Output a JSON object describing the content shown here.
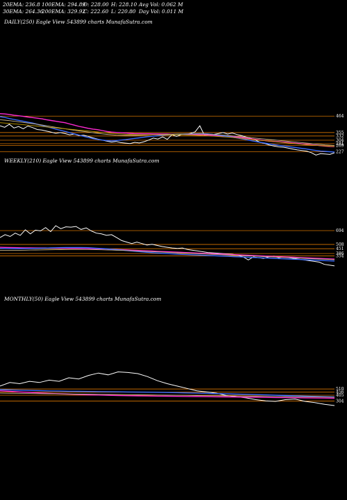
{
  "header": {
    "ema20": "20EMA: 236.8",
    "ema30": "30EMA: 264.36",
    "ema100": "100EMA: 294.89",
    "ema200": "200EMA: 329.92",
    "open": "O: 228.00",
    "close": "C: 222.60",
    "high": "H: 228.10",
    "low": "L: 220.80",
    "avg_vol": "Avg Vol: 0.062  M",
    "day_vol": "Day Vol: 0.011  M"
  },
  "colors": {
    "background": "#000000",
    "price": "#ffffff",
    "ema_pink": "#ff2ad4",
    "ema_blue": "#3a6bff",
    "ema_khaki": "#c8b58a",
    "ema_gold": "#c8a000",
    "level_line": "#ff8a00",
    "label_text": "#ffffff"
  },
  "chart_data": [
    {
      "type": "line",
      "title": "DAILY(250) Eagle  View  543899 charts MunafaSutra.com",
      "ylim": [
        198,
        520
      ],
      "levels": [
        464,
        355,
        332,
        304,
        281,
        269,
        227
      ],
      "level_labels": [
        "464",
        "355",
        "332",
        "304",
        "281",
        "269",
        "227"
      ],
      "series": [
        {
          "role": "price",
          "values": [
            400,
            390,
            410,
            385,
            395,
            380,
            398,
            388,
            375,
            372,
            365,
            358,
            350,
            355,
            348,
            340,
            345,
            335,
            338,
            330,
            320,
            312,
            305,
            298,
            292,
            296,
            288,
            285,
            282,
            290,
            286,
            294,
            305,
            318,
            312,
            326,
            310,
            340,
            330,
            340,
            342,
            350,
            360,
            400,
            336,
            345,
            343,
            348,
            355,
            345,
            352,
            342,
            335,
            325,
            316,
            305,
            290,
            282,
            272,
            265,
            260,
            258,
            252,
            246,
            240,
            236,
            232,
            222,
            206,
            215,
            213,
            210,
            221
          ]
        },
        {
          "role": "ema-pink",
          "values": [
            480,
            478,
            475,
            470,
            466,
            462,
            458,
            454,
            450,
            446,
            440,
            435,
            430,
            425,
            420,
            412,
            404,
            396,
            390,
            383,
            378,
            374,
            368,
            362,
            358,
            356,
            354,
            352,
            350,
            348,
            348,
            347,
            347,
            346,
            346,
            345,
            345,
            344,
            344,
            344,
            343,
            343,
            342,
            341,
            340,
            338,
            336,
            334,
            332,
            330,
            328,
            325,
            322,
            318,
            314,
            310,
            306,
            302,
            298,
            296,
            294,
            292,
            289,
            286,
            283,
            280,
            277,
            274,
            271,
            268,
            265,
            263,
            262
          ]
        },
        {
          "role": "ema-blue",
          "values": [
            460,
            455,
            448,
            442,
            436,
            430,
            424,
            418,
            410,
            402,
            394,
            386,
            378,
            370,
            362,
            354,
            346,
            338,
            330,
            322,
            315,
            310,
            305,
            302,
            300,
            302,
            305,
            308,
            312,
            316,
            320,
            324,
            328,
            331,
            334,
            337,
            339,
            341,
            343,
            344,
            345,
            346,
            347,
            348,
            347,
            345,
            342,
            338,
            334,
            329,
            324,
            319,
            314,
            308,
            302,
            296,
            290,
            285,
            280,
            275,
            270,
            266,
            262,
            258,
            254,
            250,
            246,
            241,
            236,
            232,
            230,
            228,
            226
          ]
        },
        {
          "role": "ema-khaki",
          "values": [
            440,
            437,
            434,
            430,
            426,
            422,
            418,
            414,
            410,
            405,
            400,
            395,
            390,
            385,
            380,
            375,
            370,
            366,
            362,
            358,
            354,
            350,
            346,
            343,
            340,
            338,
            337,
            336,
            336,
            336,
            337,
            338,
            339,
            340,
            341,
            342,
            343,
            344,
            345,
            346,
            346,
            346,
            346,
            346,
            345,
            344,
            342,
            340,
            338,
            336,
            333,
            330,
            327,
            324,
            321,
            318,
            315,
            312,
            309,
            306,
            303,
            300,
            297,
            294,
            291,
            288,
            285,
            282,
            279,
            276,
            273,
            271,
            269
          ]
        },
        {
          "role": "ema-gold",
          "values": [
            420,
            418,
            416,
            413,
            410,
            407,
            404,
            401,
            398,
            395,
            392,
            389,
            386,
            383,
            380,
            377,
            374,
            371,
            368,
            365,
            362,
            359,
            356,
            353,
            350,
            348,
            346,
            344,
            343,
            342,
            341,
            340,
            340,
            340,
            340,
            340,
            340,
            340,
            340,
            340,
            339,
            338,
            337,
            336,
            335,
            333,
            331,
            329,
            327,
            325,
            322,
            319,
            316,
            313,
            310,
            307,
            304,
            301,
            298,
            295,
            292,
            289,
            286,
            283,
            280,
            277,
            274,
            272,
            270,
            268,
            266,
            264,
            263
          ]
        }
      ]
    },
    {
      "type": "line",
      "title": "WEEKLY(210) Eagle  View  543899 charts MunafaSutra.com",
      "ylim": [
        200,
        900
      ],
      "levels": [
        694,
        508,
        451,
        386,
        354
      ],
      "level_labels": [
        "694",
        "508",
        "451",
        "386",
        "354"
      ],
      "series": [
        {
          "role": "price",
          "values": [
            600,
            640,
            615,
            660,
            630,
            705,
            650,
            700,
            690,
            735,
            680,
            760,
            720,
            745,
            740,
            750,
            710,
            730,
            690,
            660,
            650,
            630,
            640,
            600,
            560,
            540,
            520,
            540,
            520,
            500,
            510,
            495,
            480,
            470,
            460,
            455,
            460,
            440,
            430,
            420,
            410,
            400,
            395,
            390,
            385,
            380,
            375,
            360,
            340,
            300,
            340,
            330,
            320,
            340,
            350,
            330,
            340,
            330,
            320,
            310,
            300,
            290,
            280,
            270,
            240,
            230,
            220
          ]
        },
        {
          "role": "ema-pink",
          "values": [
            470,
            468,
            466,
            465,
            463,
            462,
            461,
            460,
            460,
            460,
            459,
            459,
            458,
            458,
            457,
            456,
            455,
            454,
            452,
            450,
            448,
            446,
            443,
            440,
            437,
            434,
            431,
            428,
            425,
            422,
            419,
            416,
            413,
            410,
            407,
            404,
            401,
            398,
            395,
            392,
            389,
            386,
            383,
            380,
            377,
            374,
            371,
            368,
            365,
            362,
            359,
            356,
            353,
            350,
            347,
            344,
            341,
            338,
            335,
            332,
            329,
            326,
            323,
            320,
            317,
            314,
            311
          ]
        },
        {
          "role": "ema-blue",
          "values": [
            455,
            454,
            453,
            452,
            452,
            453,
            454,
            455,
            457,
            459,
            461,
            463,
            465,
            466,
            467,
            467,
            466,
            465,
            462,
            458,
            454,
            449,
            444,
            438,
            432,
            426,
            420,
            414,
            408,
            403,
            398,
            393,
            389,
            385,
            381,
            378,
            375,
            372,
            369,
            366,
            363,
            360,
            357,
            354,
            351,
            348,
            345,
            342,
            339,
            336,
            333,
            330,
            327,
            324,
            321,
            318,
            315,
            312,
            309,
            306,
            303,
            300,
            297,
            294,
            291,
            288,
            285
          ]
        },
        {
          "role": "ema-khaki",
          "values": [
            430,
            430,
            430,
            430,
            430,
            431,
            432,
            433,
            434,
            435,
            436,
            437,
            438,
            439,
            440,
            440,
            440,
            440,
            439,
            438,
            436,
            434,
            432,
            430,
            428,
            426,
            423,
            420,
            417,
            414,
            411,
            408,
            405,
            402,
            399,
            396,
            393,
            390,
            387,
            384,
            381,
            378,
            375,
            372,
            369,
            366,
            363,
            360,
            357,
            354,
            351,
            348,
            345,
            342,
            339,
            336,
            333,
            330,
            327,
            324,
            321,
            318,
            315,
            312,
            309,
            306,
            303
          ]
        }
      ]
    },
    {
      "type": "line",
      "title": "MONTHLY(50) Eagle  View  543899 charts MunafaSutra.com",
      "ylim": [
        100,
        1100
      ],
      "levels": [
        510,
        456,
        405,
        304
      ],
      "level_labels": [
        "510",
        "456",
        "405",
        "304"
      ],
      "series": [
        {
          "role": "price",
          "values": [
            560,
            620,
            600,
            640,
            620,
            660,
            640,
            700,
            680,
            740,
            780,
            750,
            800,
            790,
            770,
            720,
            650,
            600,
            560,
            520,
            480,
            460,
            440,
            400,
            380,
            360,
            330,
            310,
            300,
            330,
            340,
            300,
            280,
            250,
            230
          ]
        },
        {
          "role": "ema-pink",
          "values": [
            480,
            470,
            460,
            452,
            444,
            436,
            430,
            424,
            418,
            412,
            408,
            404,
            400,
            396,
            394,
            392,
            390,
            388,
            386,
            384,
            382,
            380,
            378,
            376,
            374,
            372,
            370,
            368,
            366,
            364,
            362,
            360,
            358,
            356,
            354
          ]
        },
        {
          "role": "ema-blue",
          "values": [
            500,
            495,
            490,
            486,
            482,
            478,
            475,
            472,
            470,
            468,
            466,
            464,
            462,
            460,
            458,
            456,
            454,
            451,
            448,
            444,
            440,
            436,
            432,
            428,
            424,
            420,
            415,
            410,
            405,
            400,
            395,
            390,
            385,
            380,
            375
          ]
        },
        {
          "role": "ema-khaki",
          "values": [
            440,
            438,
            436,
            434,
            432,
            430,
            428,
            426,
            424,
            422,
            420,
            418,
            416,
            414,
            412,
            410,
            408,
            406,
            404,
            402,
            400,
            398,
            396,
            394,
            392,
            390,
            388,
            386,
            384,
            382,
            380,
            378,
            376,
            374,
            372
          ]
        }
      ]
    }
  ]
}
